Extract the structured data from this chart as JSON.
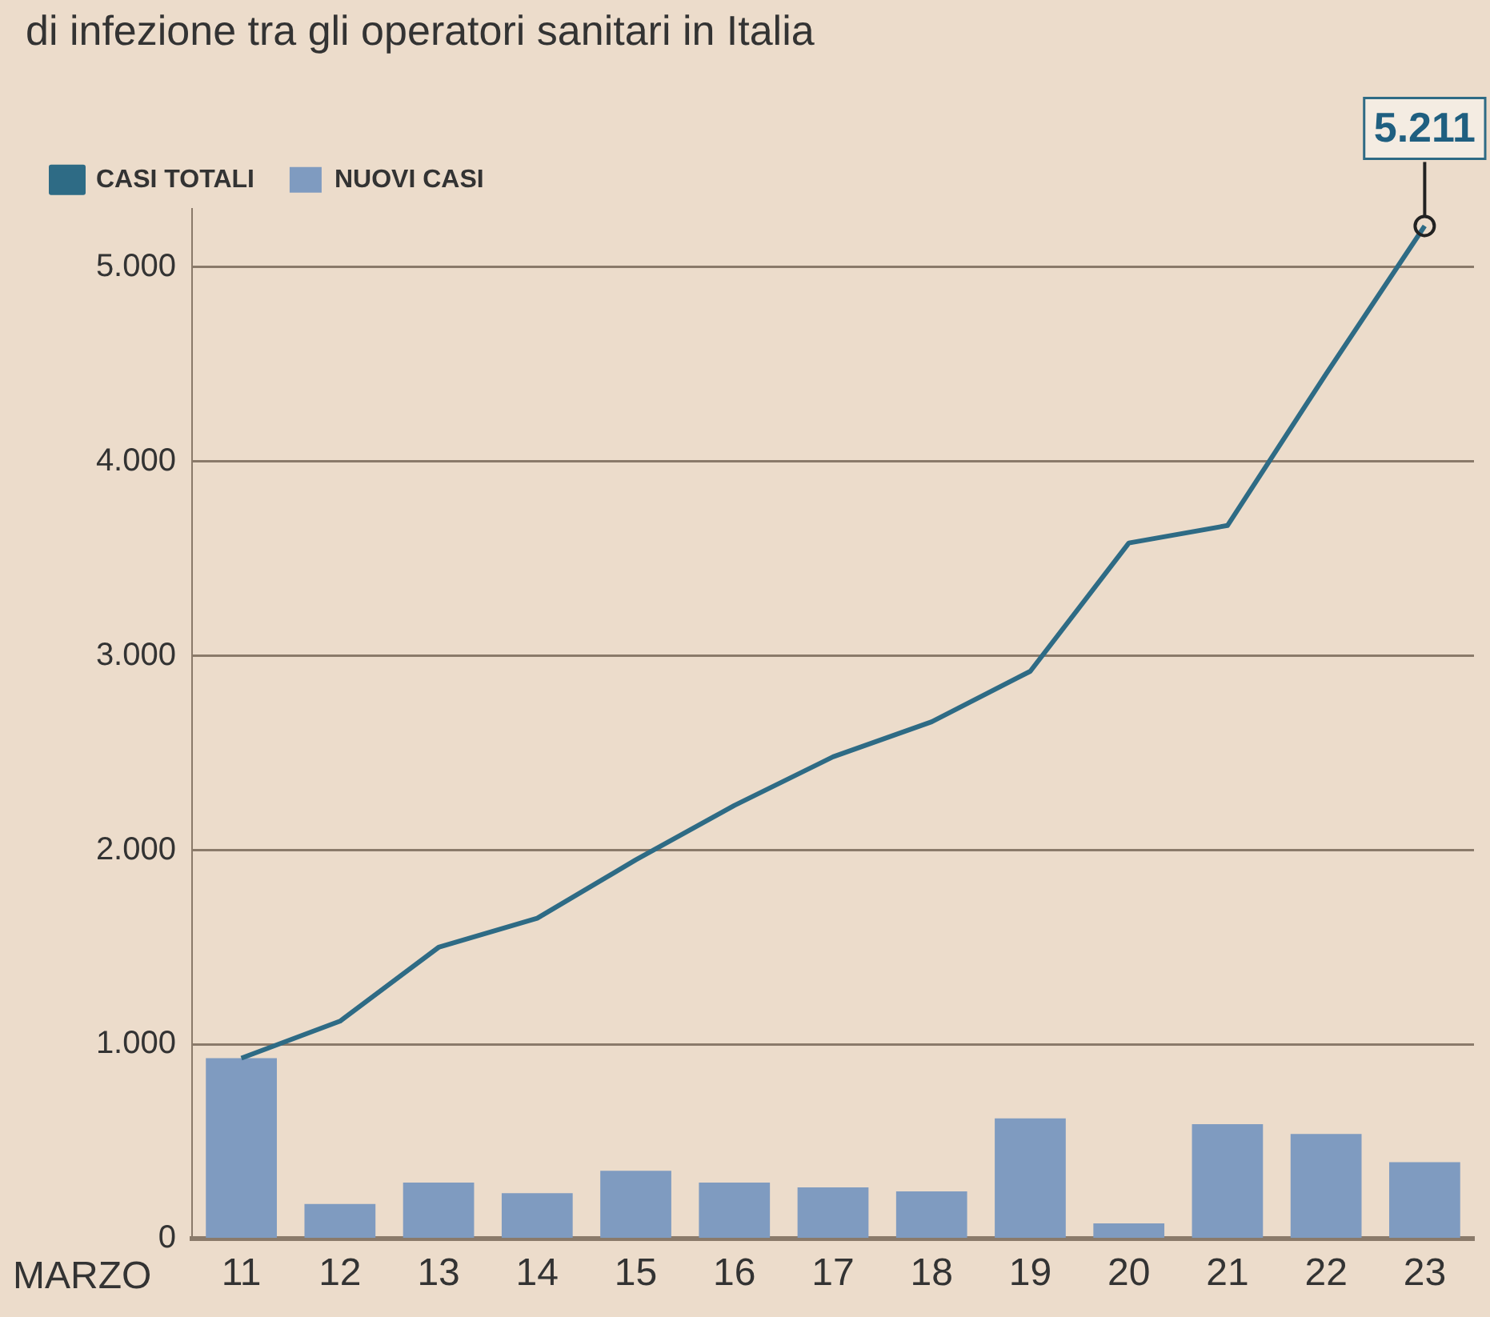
{
  "chart_data": {
    "type": "bar",
    "title": "di infezione tra gli operatori sanitari in Italia",
    "xlabel": "MARZO",
    "categories": [
      "11",
      "12",
      "13",
      "14",
      "15",
      "16",
      "17",
      "18",
      "19",
      "20",
      "21",
      "22",
      "23"
    ],
    "series": [
      {
        "name": "CASI TOTALI",
        "type": "line",
        "color": "#2e6b85",
        "values": [
          930,
          1120,
          1500,
          1650,
          1950,
          2230,
          2480,
          2660,
          2920,
          3580,
          3670,
          4450,
          5211
        ]
      },
      {
        "name": "NUOVI CASI",
        "type": "bar",
        "color": "#7f9bc0",
        "values": [
          930,
          180,
          290,
          235,
          350,
          290,
          265,
          245,
          620,
          80,
          590,
          540,
          395
        ]
      }
    ],
    "ylim": [
      0,
      5300
    ],
    "yticks": [
      {
        "value": 0,
        "label": "0"
      },
      {
        "value": 1000,
        "label": "1.000"
      },
      {
        "value": 2000,
        "label": "2.000"
      },
      {
        "value": 3000,
        "label": "3.000"
      },
      {
        "value": 4000,
        "label": "4.000"
      },
      {
        "value": 5000,
        "label": "5.000"
      }
    ],
    "annotations": [
      {
        "text": "5.211",
        "x": "23",
        "y": 5211
      }
    ],
    "grid": "y",
    "legend": "top left",
    "marker": "none",
    "line_style": "solid"
  }
}
